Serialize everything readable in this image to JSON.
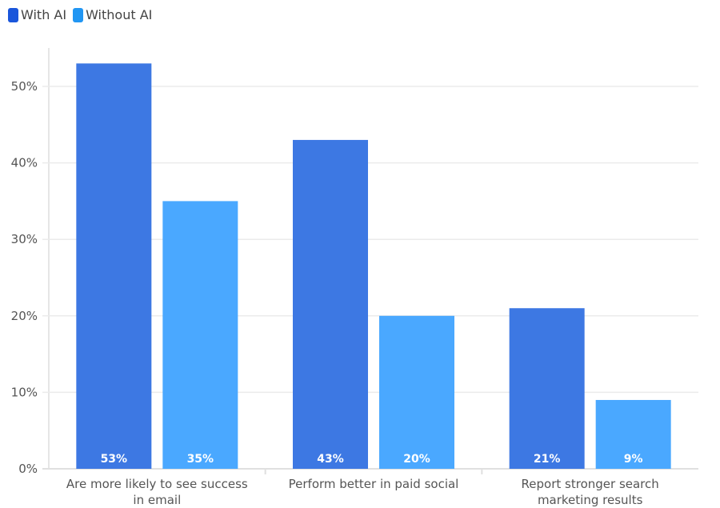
{
  "chart_data": {
    "type": "bar",
    "title": "",
    "xlabel": "",
    "ylabel": "",
    "ylim": [
      0,
      55
    ],
    "yticks": [
      "0%",
      "10%",
      "20%",
      "30%",
      "40%",
      "50%"
    ],
    "ytick_values": [
      0,
      10,
      20,
      30,
      40,
      50
    ],
    "grid": true,
    "legend_position": "top-left",
    "categories": [
      [
        "Are more likely to see success",
        "in email"
      ],
      [
        "Perform better in paid social"
      ],
      [
        "Report stronger search",
        "marketing results"
      ]
    ],
    "series": [
      {
        "name": "With AI",
        "values": [
          53,
          43,
          21
        ],
        "labels": [
          "53%",
          "43%",
          "21%"
        ],
        "color": "#3d78e3",
        "legend_color": "#1a56db"
      },
      {
        "name": "Without AI",
        "values": [
          35,
          20,
          9
        ],
        "labels": [
          "35%",
          "20%",
          "9%"
        ],
        "color": "#4aa8ff",
        "legend_color": "#2196f3"
      }
    ]
  }
}
